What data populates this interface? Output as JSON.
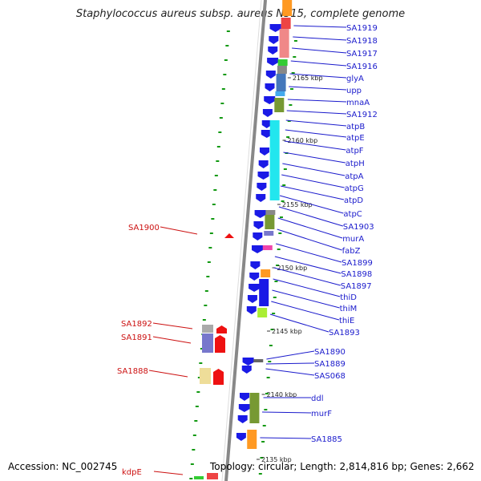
{
  "title": "Staphylococcus aureus subsp. aureus N315, complete genome",
  "footer": {
    "accession": "Accession: NC_002745",
    "topology": "Topology: circular; Length: 2,814,816 bp; Genes: 2,662"
  },
  "colors": {
    "backbone": "#888888",
    "gene_forward": "#1a1ae6",
    "gene_reverse": "#ee1111",
    "label_forward": "#1a1acc",
    "label_reverse": "#cc1111",
    "dot": "#119911"
  },
  "kbp_markers": [
    "2165 kbp",
    "2160 kbp",
    "2155 kbp",
    "2150 kbp",
    "2145 kbp",
    "2140 kbp",
    "2135 kbp"
  ],
  "forward_labels": [
    "SA1919",
    "SA1918",
    "SA1917",
    "SA1916",
    "glyA",
    "upp",
    "mnaA",
    "SA1912",
    "atpB",
    "atpE",
    "atpF",
    "atpH",
    "atpA",
    "atpG",
    "atpD",
    "atpC",
    "SA1903",
    "murA",
    "fabZ",
    "SA1899",
    "SA1898",
    "SA1897",
    "thiD",
    "thiM",
    "thiE",
    "SA1893",
    "SA1890",
    "SA1889",
    "SAS068",
    "ddl",
    "murF",
    "SA1885"
  ],
  "reverse_labels": [
    "SA1900",
    "SA1892",
    "SA1891",
    "SA1888",
    "kdpE"
  ]
}
